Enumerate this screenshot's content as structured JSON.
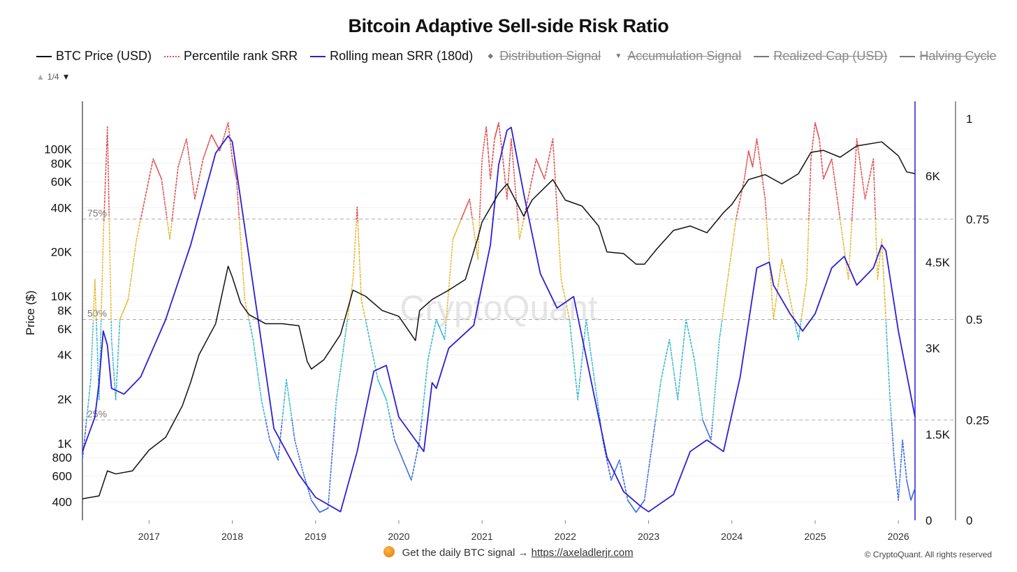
{
  "header": {
    "title": "Bitcoin Adaptive Sell-side Risk Ratio"
  },
  "legend": {
    "items": [
      {
        "label": "BTC Price (USD)",
        "color": "#111111",
        "style": "solid",
        "enabled": true
      },
      {
        "label": "Percentile rank SRR",
        "color": "#e05050",
        "style": "dotted",
        "enabled": true
      },
      {
        "label": "Rolling mean SRR (180d)",
        "color": "#2a1fd6",
        "style": "solid",
        "enabled": true
      },
      {
        "label": "Distribution Signal",
        "color": "#777777",
        "style": "diamond",
        "enabled": false
      },
      {
        "label": "Accumulation Signal",
        "color": "#777777",
        "style": "triangle",
        "enabled": false
      },
      {
        "label": "Realized Cap (USD)",
        "color": "#777777",
        "style": "solid",
        "enabled": false
      },
      {
        "label": "Halving Cycle",
        "color": "#777777",
        "style": "solid",
        "enabled": false
      }
    ],
    "pager": "1/4"
  },
  "watermark": "CryptoQuant",
  "footer": {
    "text": "Get the daily BTC signal →",
    "link": "https://axeladlerjr.com",
    "copyright": "© CryptoQuant. All rights reserved"
  },
  "chart_data": {
    "type": "line",
    "title": "Bitcoin Adaptive Sell-side Risk Ratio",
    "ylabel": "Price ($)",
    "x_range": [
      2016.2,
      2026.2
    ],
    "x_ticks": [
      "2017",
      "2018",
      "2019",
      "2020",
      "2021",
      "2022",
      "2023",
      "2024",
      "2025",
      "2026"
    ],
    "y_left": {
      "scale": "log",
      "range": [
        300,
        200000
      ],
      "ticks": [
        "400",
        "600",
        "800",
        "1K",
        "2K",
        "4K",
        "6K",
        "8K",
        "10K",
        "20K",
        "40K",
        "60K",
        "80K",
        "100K"
      ]
    },
    "y_mid": {
      "range": [
        0,
        7000
      ],
      "ticks": [
        "0",
        "1.5K",
        "3K",
        "4.5K",
        "6K"
      ]
    },
    "y_right": {
      "range": [
        0,
        1
      ],
      "ticks": [
        "0",
        "0.25",
        "0.5",
        "0.75",
        "1"
      ]
    },
    "threshold_lines": [
      {
        "label": "75%",
        "value": 0.75
      },
      {
        "label": "50%",
        "value": 0.5
      },
      {
        "label": "25%",
        "value": 0.25
      }
    ],
    "percentile_colors": {
      "above_75": "#e05050",
      "50_75": "#e6b830",
      "25_50": "#3bb8cf",
      "below_25": "#3a6be0"
    },
    "series": [
      {
        "name": "BTC Price (USD)",
        "axis": "left",
        "x": [
          2016.2,
          2016.4,
          2016.5,
          2016.6,
          2016.8,
          2017.0,
          2017.2,
          2017.4,
          2017.5,
          2017.6,
          2017.8,
          2017.95,
          2018.0,
          2018.1,
          2018.2,
          2018.4,
          2018.6,
          2018.8,
          2018.9,
          2018.95,
          2019.1,
          2019.3,
          2019.45,
          2019.6,
          2019.8,
          2020.0,
          2020.2,
          2020.25,
          2020.4,
          2020.6,
          2020.8,
          2020.95,
          2021.0,
          2021.2,
          2021.3,
          2021.5,
          2021.6,
          2021.85,
          2022.0,
          2022.2,
          2022.4,
          2022.5,
          2022.7,
          2022.85,
          2022.95,
          2023.1,
          2023.3,
          2023.5,
          2023.7,
          2023.9,
          2024.0,
          2024.2,
          2024.4,
          2024.6,
          2024.8,
          2024.95,
          2025.1,
          2025.3,
          2025.5,
          2025.8,
          2026.0,
          2026.1,
          2026.2
        ],
        "y": [
          420,
          440,
          650,
          620,
          650,
          900,
          1100,
          1800,
          2600,
          4000,
          6500,
          16000,
          13500,
          9000,
          7500,
          6500,
          6500,
          6300,
          3600,
          3200,
          3700,
          5500,
          11000,
          10000,
          8000,
          7300,
          5000,
          8000,
          9500,
          11000,
          13000,
          25000,
          32000,
          50000,
          58000,
          35000,
          45000,
          62000,
          45000,
          41000,
          30000,
          20000,
          19500,
          16500,
          16500,
          21000,
          28000,
          30000,
          27000,
          37000,
          42000,
          62000,
          67000,
          58000,
          68000,
          95000,
          98000,
          88000,
          105000,
          112000,
          90000,
          70000,
          68000
        ]
      },
      {
        "name": "Rolling mean SRR (180d)",
        "axis": "mid",
        "x": [
          2016.2,
          2016.35,
          2016.4,
          2016.45,
          2016.5,
          2016.55,
          2016.7,
          2016.9,
          2017.2,
          2017.5,
          2017.8,
          2017.95,
          2018.0,
          2018.2,
          2018.5,
          2018.8,
          2019.0,
          2019.3,
          2019.5,
          2019.7,
          2019.85,
          2020.0,
          2020.2,
          2020.3,
          2020.4,
          2020.45,
          2020.6,
          2020.9,
          2021.1,
          2021.2,
          2021.3,
          2021.35,
          2021.5,
          2021.7,
          2021.9,
          2022.1,
          2022.3,
          2022.5,
          2022.7,
          2022.9,
          2023.0,
          2023.3,
          2023.5,
          2023.7,
          2023.9,
          2024.1,
          2024.3,
          2024.45,
          2024.5,
          2024.7,
          2024.85,
          2025.0,
          2025.2,
          2025.35,
          2025.5,
          2025.7,
          2025.8,
          2025.85,
          2026.0,
          2026.2
        ],
        "y": [
          1200,
          1800,
          2400,
          3300,
          3050,
          2300,
          2200,
          2500,
          3500,
          4800,
          6400,
          6700,
          6600,
          4600,
          1600,
          800,
          400,
          150,
          1200,
          2600,
          2700,
          1800,
          1400,
          1200,
          2400,
          2300,
          3000,
          3400,
          4800,
          6200,
          6800,
          6850,
          5700,
          4300,
          3700,
          3900,
          2500,
          1100,
          500,
          250,
          150,
          450,
          1200,
          1400,
          1200,
          2500,
          4400,
          4500,
          4100,
          3600,
          3300,
          3600,
          4400,
          4600,
          4100,
          4400,
          4800,
          4700,
          3300,
          1800
        ]
      },
      {
        "name": "Percentile rank SRR",
        "axis": "right",
        "x": [
          2016.2,
          2016.3,
          2016.35,
          2016.4,
          2016.45,
          2016.5,
          2016.55,
          2016.6,
          2016.65,
          2016.75,
          2016.85,
          2016.95,
          2017.05,
          2017.15,
          2017.25,
          2017.35,
          2017.45,
          2017.55,
          2017.65,
          2017.75,
          2017.85,
          2017.95,
          2018.0,
          2018.05,
          2018.1,
          2018.15,
          2018.25,
          2018.35,
          2018.45,
          2018.55,
          2018.65,
          2018.75,
          2018.85,
          2018.95,
          2019.05,
          2019.15,
          2019.25,
          2019.35,
          2019.45,
          2019.5,
          2019.55,
          2019.65,
          2019.75,
          2019.85,
          2019.95,
          2020.05,
          2020.15,
          2020.25,
          2020.35,
          2020.45,
          2020.55,
          2020.65,
          2020.75,
          2020.85,
          2020.95,
          2021.0,
          2021.05,
          2021.1,
          2021.15,
          2021.2,
          2021.25,
          2021.3,
          2021.35,
          2021.45,
          2021.55,
          2021.65,
          2021.75,
          2021.85,
          2021.95,
          2022.05,
          2022.15,
          2022.25,
          2022.35,
          2022.45,
          2022.55,
          2022.65,
          2022.75,
          2022.85,
          2022.95,
          2023.05,
          2023.15,
          2023.25,
          2023.35,
          2023.45,
          2023.55,
          2023.65,
          2023.75,
          2023.85,
          2023.95,
          2024.05,
          2024.15,
          2024.2,
          2024.25,
          2024.3,
          2024.4,
          2024.5,
          2024.6,
          2024.7,
          2024.8,
          2024.9,
          2024.95,
          2025.0,
          2025.05,
          2025.1,
          2025.2,
          2025.3,
          2025.4,
          2025.5,
          2025.6,
          2025.7,
          2025.75,
          2025.8,
          2025.85,
          2025.9,
          2025.95,
          2026.0,
          2026.05,
          2026.1,
          2026.15,
          2026.2
        ],
        "y": [
          0.15,
          0.35,
          0.6,
          0.3,
          0.7,
          0.98,
          0.45,
          0.3,
          0.5,
          0.55,
          0.7,
          0.8,
          0.9,
          0.85,
          0.7,
          0.88,
          0.95,
          0.8,
          0.9,
          0.96,
          0.92,
          0.99,
          0.9,
          0.85,
          0.7,
          0.55,
          0.45,
          0.3,
          0.2,
          0.15,
          0.35,
          0.2,
          0.12,
          0.05,
          0.02,
          0.03,
          0.3,
          0.45,
          0.6,
          0.78,
          0.55,
          0.45,
          0.35,
          0.3,
          0.2,
          0.15,
          0.1,
          0.2,
          0.4,
          0.5,
          0.45,
          0.7,
          0.75,
          0.8,
          0.65,
          0.9,
          0.98,
          0.85,
          0.95,
          0.99,
          0.9,
          0.8,
          0.95,
          0.7,
          0.8,
          0.9,
          0.85,
          0.95,
          0.6,
          0.5,
          0.3,
          0.5,
          0.35,
          0.2,
          0.1,
          0.15,
          0.05,
          0.02,
          0.05,
          0.2,
          0.35,
          0.45,
          0.3,
          0.5,
          0.4,
          0.25,
          0.2,
          0.45,
          0.6,
          0.75,
          0.85,
          0.92,
          0.88,
          0.95,
          0.8,
          0.5,
          0.65,
          0.55,
          0.45,
          0.6,
          0.9,
          0.99,
          0.95,
          0.85,
          0.9,
          0.75,
          0.6,
          0.95,
          0.8,
          0.9,
          0.6,
          0.7,
          0.5,
          0.3,
          0.15,
          0.05,
          0.2,
          0.1,
          0.05,
          0.08
        ]
      }
    ],
    "grid": true,
    "legend_position": "top"
  }
}
